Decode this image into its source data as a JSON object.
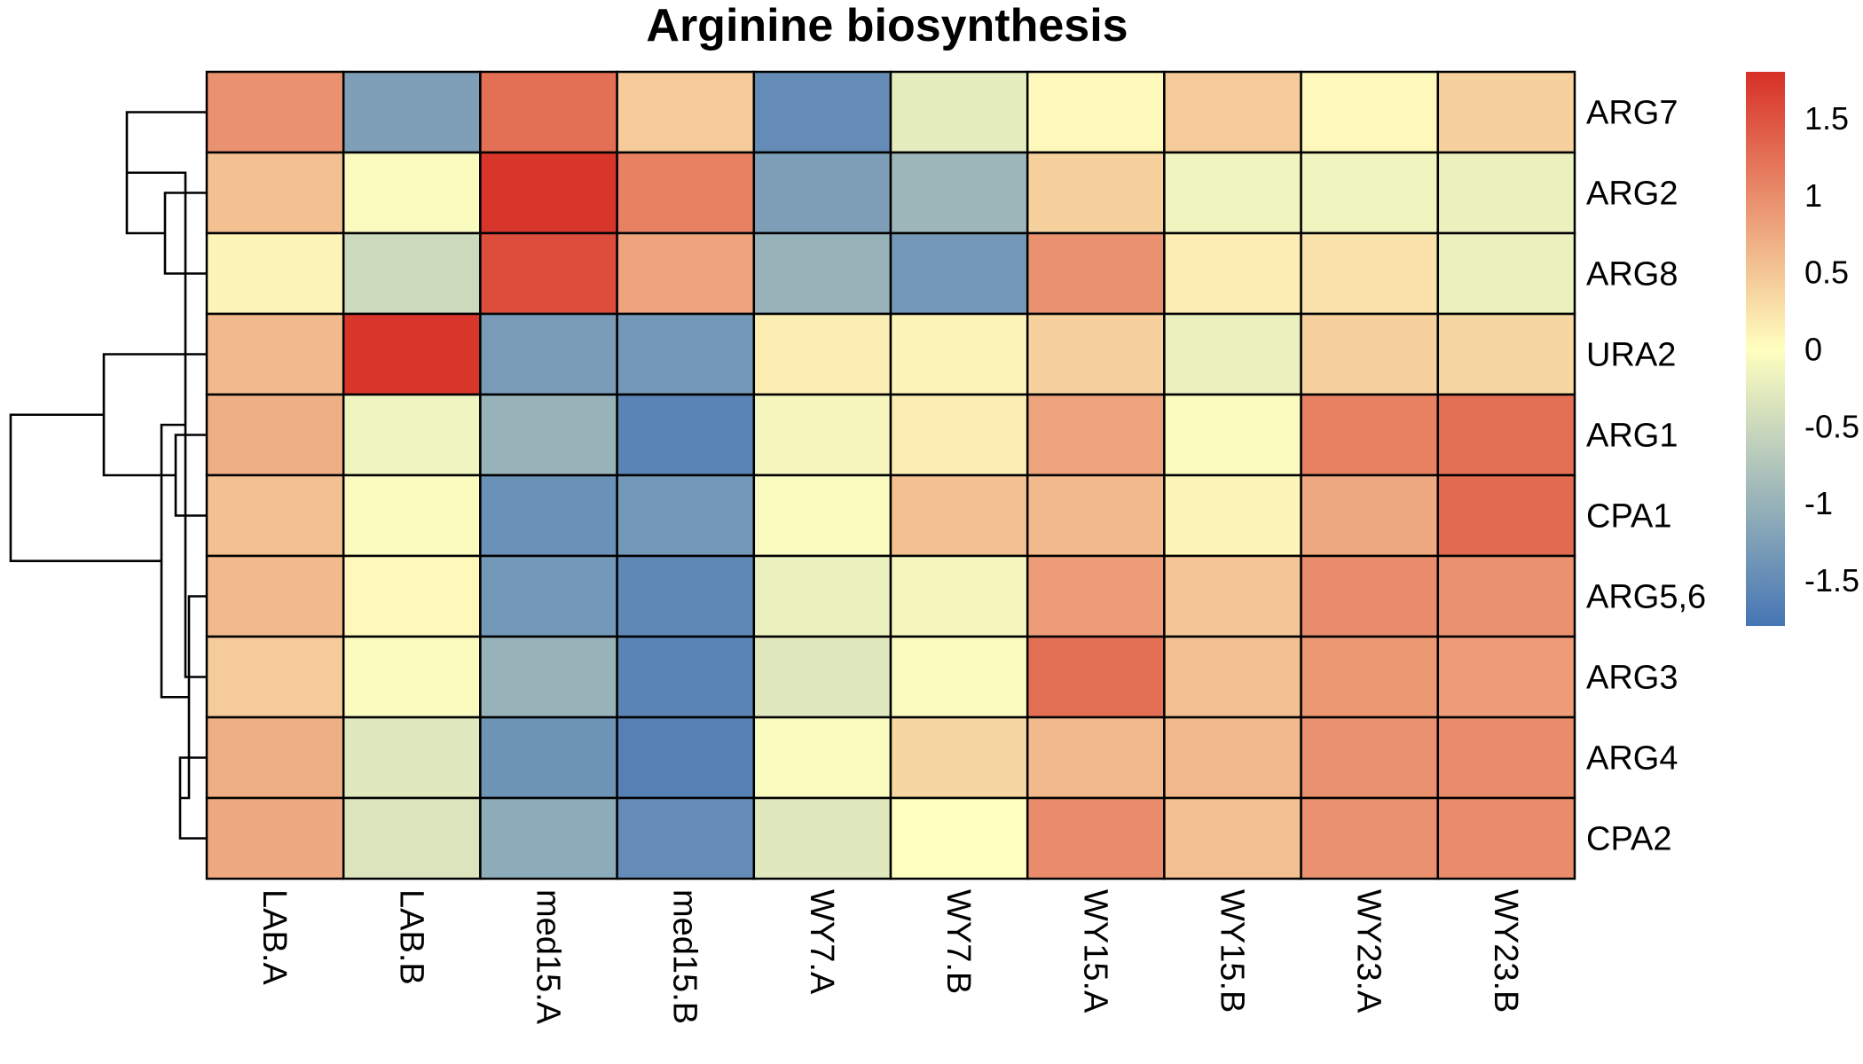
{
  "chart_data": {
    "type": "heatmap",
    "title": "Arginine biosynthesis",
    "columns": [
      "LAB.A",
      "LAB.B",
      "med15.A",
      "med15.B",
      "WY7.A",
      "WY7.B",
      "WY15.A",
      "WY15.B",
      "WY23.A",
      "WY23.B"
    ],
    "rows": [
      "ARG7",
      "ARG2",
      "ARG8",
      "URA2",
      "ARG1",
      "CPA1",
      "ARG5,6",
      "ARG3",
      "ARG4",
      "CPA2"
    ],
    "values": [
      [
        0.95,
        -1.25,
        1.25,
        0.45,
        -1.5,
        -0.25,
        0.05,
        0.45,
        0.05,
        0.4
      ],
      [
        0.55,
        -0.05,
        1.75,
        1.1,
        -1.25,
        -0.95,
        0.4,
        -0.15,
        -0.15,
        -0.2
      ],
      [
        0.1,
        -0.5,
        1.55,
        0.8,
        -1.0,
        -1.35,
        0.95,
        0.15,
        0.25,
        -0.2
      ],
      [
        0.6,
        1.75,
        -1.3,
        -1.35,
        0.15,
        0.1,
        0.4,
        -0.2,
        0.4,
        0.35
      ],
      [
        0.7,
        -0.15,
        -1.0,
        -1.6,
        -0.1,
        0.15,
        0.8,
        -0.05,
        1.1,
        1.25
      ],
      [
        0.55,
        -0.05,
        -1.45,
        -1.35,
        -0.05,
        0.55,
        0.6,
        0.1,
        0.75,
        1.3
      ],
      [
        0.6,
        0.05,
        -1.35,
        -1.55,
        -0.2,
        -0.1,
        0.85,
        0.5,
        1.0,
        0.95
      ],
      [
        0.45,
        -0.05,
        -1.0,
        -1.6,
        -0.3,
        -0.05,
        1.25,
        0.55,
        0.9,
        0.85
      ],
      [
        0.7,
        -0.3,
        -1.4,
        -1.65,
        -0.05,
        0.35,
        0.6,
        0.6,
        0.95,
        1.0
      ],
      [
        0.75,
        -0.35,
        -1.1,
        -1.5,
        -0.3,
        0.0,
        1.0,
        0.55,
        0.95,
        1.0
      ]
    ],
    "color_scale": {
      "stops": [
        -1.8,
        0,
        1.8
      ],
      "colors": [
        "#4575B4",
        "#FFFFBF",
        "#D73027"
      ],
      "legend_ticks": [
        "1.5",
        "1",
        "0.5",
        "0",
        "-0.5",
        "-1",
        "-1.5"
      ]
    },
    "row_dendrogram": true,
    "grid": true,
    "legend_position": "right"
  }
}
